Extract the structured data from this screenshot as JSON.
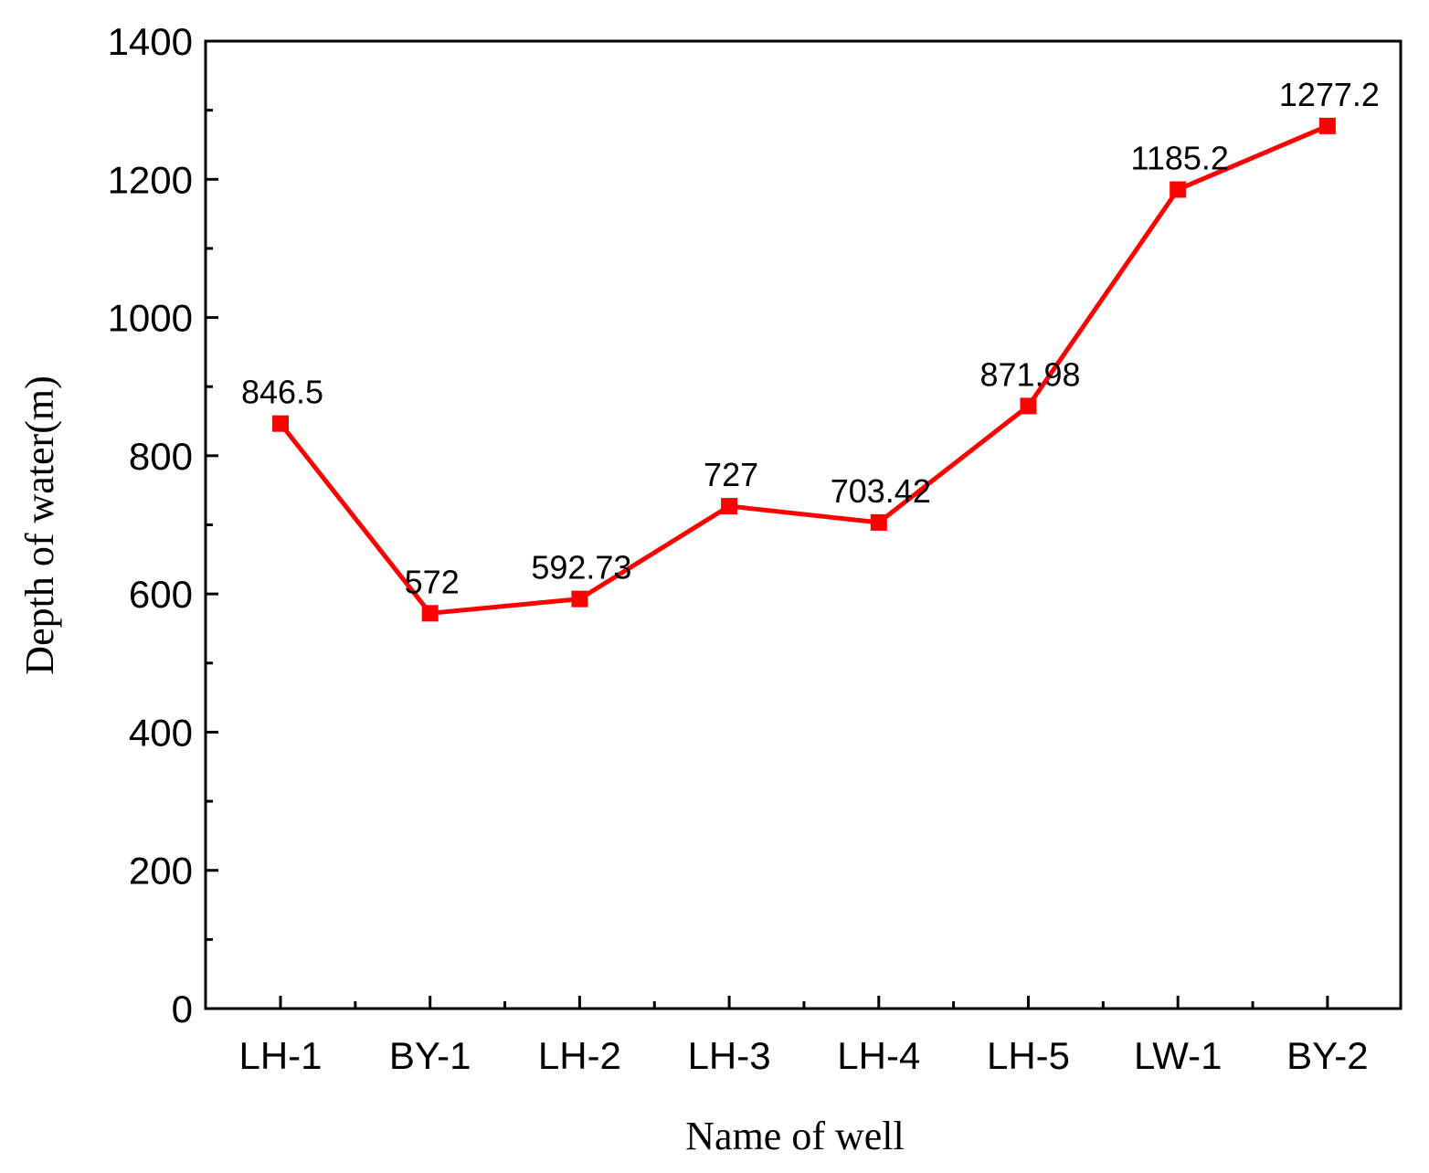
{
  "chart_data": {
    "type": "line",
    "categories": [
      "LH-1",
      "BY-1",
      "LH-2",
      "LH-3",
      "LH-4",
      "LH-5",
      "LW-1",
      "BY-2"
    ],
    "series": [
      {
        "values": [
          846.5,
          572,
          592.73,
          727,
          703.42,
          871.98,
          1185.2,
          1277.2
        ]
      }
    ],
    "data_labels": [
      "846.5",
      "572",
      "592.73",
      "727",
      "703.42",
      "871.98",
      "1185.2",
      "1277.2"
    ],
    "xlabel": "Name of well",
    "ylabel": "Depth of water(m)",
    "ylim": [
      0,
      1400
    ],
    "yticks": [
      0,
      200,
      400,
      600,
      800,
      1000,
      1200,
      1400
    ],
    "yticks_labels": [
      "0",
      "200",
      "400",
      "600",
      "800",
      "1000",
      "1200",
      "1400"
    ],
    "grid": false,
    "legend": "none",
    "line_color": "#ff0000",
    "marker": "square"
  }
}
